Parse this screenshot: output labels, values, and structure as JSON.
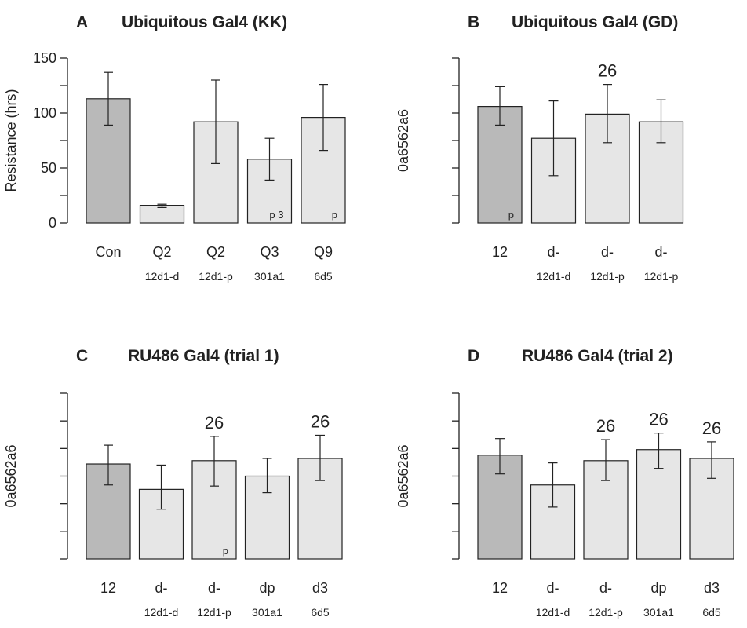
{
  "chart_data": [
    {
      "type": "bar",
      "panel": "A",
      "title": "Ubiquitous Gal4 (KK)",
      "ylabel": "Resistance (hrs)",
      "ylim": [
        0,
        150
      ],
      "yticks": [
        "0",
        "50",
        "100",
        "150"
      ],
      "categories": [
        {
          "line1": "Con",
          "line2": ""
        },
        {
          "line1": "Q2",
          "line2": "12d1-d"
        },
        {
          "line1": "Q2",
          "line2": "12d1-p"
        },
        {
          "line1": "Q3",
          "line2": "301a1"
        },
        {
          "line1": "Q9",
          "line2": "6d5"
        }
      ],
      "values": [
        113,
        16,
        92,
        58,
        96
      ],
      "err_low": [
        89,
        14,
        54,
        39,
        66
      ],
      "err_high": [
        137,
        17,
        130,
        77,
        126
      ],
      "fills": [
        "#b9b9b9",
        "#e6e6e6",
        "#e6e6e6",
        "#e6e6e6",
        "#e6e6e6"
      ],
      "bar_marks": [
        {
          "index": 3,
          "text": "p 3",
          "size": "small"
        },
        {
          "index": 4,
          "text": "p",
          "size": "small"
        }
      ]
    },
    {
      "type": "bar",
      "panel": "B",
      "title": "Ubiquitous Gal4 (GD)",
      "ylabel": "0a6562a6",
      "ylim": [
        0,
        150
      ],
      "yticks": [],
      "categories": [
        {
          "line1": "12",
          "line2": ""
        },
        {
          "line1": "d-",
          "line2": "12d1-d"
        },
        {
          "line1": "d-",
          "line2": "12d1-p"
        },
        {
          "line1": "d-",
          "line2": "12d1-p"
        }
      ],
      "values": [
        106,
        77,
        99,
        92
      ],
      "err_low": [
        89,
        43,
        73,
        73
      ],
      "err_high": [
        124,
        111,
        126,
        112
      ],
      "fills": [
        "#b9b9b9",
        "#e6e6e6",
        "#e6e6e6",
        "#e6e6e6"
      ],
      "bar_marks": [
        {
          "index": 0,
          "text": "p",
          "size": "small"
        },
        {
          "index": 2,
          "text": "26",
          "size": "big"
        }
      ]
    },
    {
      "type": "bar",
      "panel": "C",
      "title": "RU486 Gal4 (trial 1)",
      "ylabel": "0a6562a6",
      "ylim": [
        0,
        150
      ],
      "yticks": [],
      "categories": [
        {
          "line1": "12",
          "line2": ""
        },
        {
          "line1": "d-",
          "line2": "12d1-d"
        },
        {
          "line1": "d-",
          "line2": "12d1-p"
        },
        {
          "line1": "dp",
          "line2": "301a1"
        },
        {
          "line1": "d3",
          "line2": "6d5"
        }
      ],
      "values": [
        86,
        63,
        89,
        75,
        91
      ],
      "err_low": [
        67,
        45,
        66,
        60,
        71
      ],
      "err_high": [
        103,
        85,
        111,
        91,
        112
      ],
      "fills": [
        "#b9b9b9",
        "#e6e6e6",
        "#e6e6e6",
        "#e6e6e6",
        "#e6e6e6"
      ],
      "bar_marks": [
        {
          "index": 2,
          "text": "p",
          "size": "small"
        },
        {
          "index": 2,
          "text": "26",
          "size": "big"
        },
        {
          "index": 4,
          "text": "26",
          "size": "big"
        }
      ]
    },
    {
      "type": "bar",
      "panel": "D",
      "title": "RU486 Gal4 (trial 2)",
      "ylabel": "0a6562a6",
      "ylim": [
        0,
        150
      ],
      "yticks": [],
      "categories": [
        {
          "line1": "12",
          "line2": ""
        },
        {
          "line1": "d-",
          "line2": "12d1-d"
        },
        {
          "line1": "d-",
          "line2": "12d1-p"
        },
        {
          "line1": "dp",
          "line2": "301a1"
        },
        {
          "line1": "d3",
          "line2": "6d5"
        }
      ],
      "values": [
        94,
        67,
        89,
        99,
        91
      ],
      "err_low": [
        77,
        47,
        71,
        82,
        73
      ],
      "err_high": [
        109,
        87,
        108,
        114,
        106
      ],
      "fills": [
        "#b9b9b9",
        "#e6e6e6",
        "#e6e6e6",
        "#e6e6e6",
        "#e6e6e6"
      ],
      "bar_marks": [
        {
          "index": 2,
          "text": "26",
          "size": "big"
        },
        {
          "index": 3,
          "text": "26",
          "size": "big"
        },
        {
          "index": 4,
          "text": "26",
          "size": "big"
        }
      ]
    }
  ]
}
